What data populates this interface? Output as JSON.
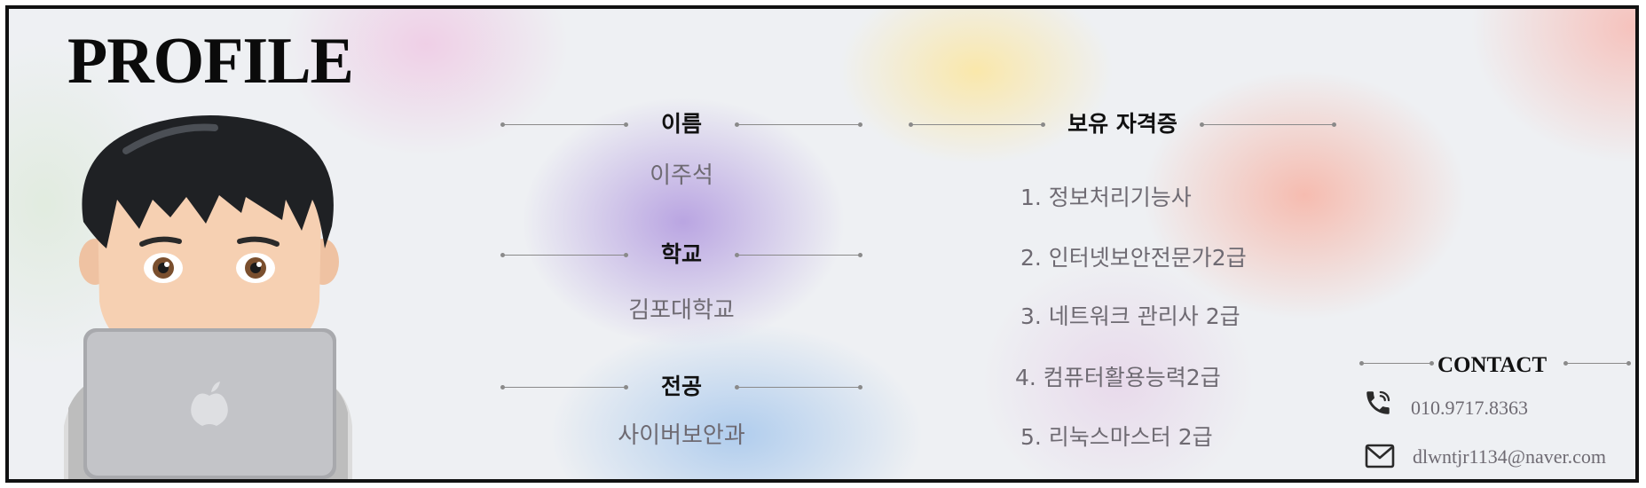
{
  "title": "PROFILE",
  "name": {
    "heading": "이름",
    "value": "이주석"
  },
  "school": {
    "heading": "학교",
    "value": "김포대학교"
  },
  "major": {
    "heading": "전공",
    "value": "사이버보안과"
  },
  "certifications": {
    "heading": "보유 자격증",
    "items": [
      "1. 정보처리기능사",
      "2. 인터넷보안전문가2급",
      "3. 네트워크 관리사 2급",
      "4. 컴퓨터활용능력2급",
      "5. 리눅스마스터 2급"
    ]
  },
  "contact": {
    "heading": "CONTACT",
    "phone": "010.9717.8363",
    "email": "dlwntjr1134@naver.com"
  },
  "icons": {
    "phone": "phone-icon",
    "email": "mail-icon",
    "avatar": "memoji-avatar-with-laptop",
    "laptop_logo": "apple-logo-icon"
  },
  "colors": {
    "text_dark": "#111111",
    "text_muted": "#6e6a72",
    "border": "#111111"
  }
}
